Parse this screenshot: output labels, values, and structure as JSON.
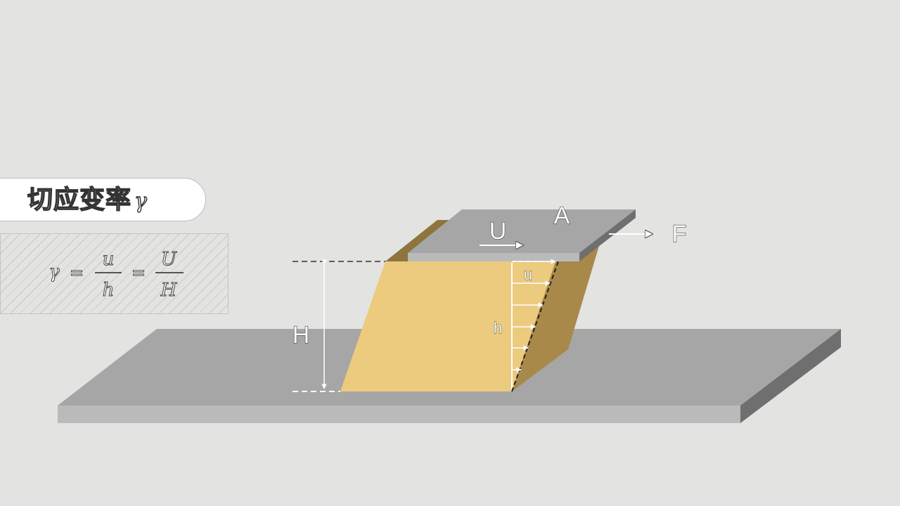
{
  "title": {
    "text": "切应变率",
    "symbol": "γ"
  },
  "formula": {
    "lhs": "γ",
    "eq1": "=",
    "frac1_num": "u",
    "frac1_den": "h",
    "eq2": "=",
    "frac2_num": "U",
    "frac2_den": "H"
  },
  "diagram": {
    "plate_label": "A",
    "velocity_label": "U",
    "force_label": "F",
    "height_label": "H",
    "local_velocity_label": "u",
    "local_height_label": "h"
  },
  "colors": {
    "background": "#e3e3e1",
    "fluid_front": "#ecca7e",
    "fluid_side": "#a8894a",
    "plate_top": "#a6a6a6",
    "plate_front": "#bababa",
    "plate_side": "#6f6f6f"
  }
}
